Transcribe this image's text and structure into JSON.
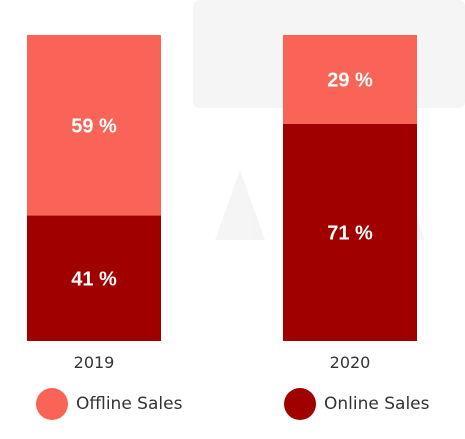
{
  "chart_data": {
    "type": "bar",
    "stacked": true,
    "percent_stacked": true,
    "categories": [
      "2019",
      "2020"
    ],
    "series": [
      {
        "name": "Online Sales",
        "values": [
          41,
          71
        ],
        "labels": [
          "41 %",
          "71 %"
        ],
        "color": "#a00000"
      },
      {
        "name": "Offline Sales",
        "values": [
          59,
          29
        ],
        "labels": [
          "59 %",
          "29 %"
        ],
        "color": "#f96456"
      }
    ],
    "ylim": [
      0,
      100
    ],
    "grid": false,
    "legend_position": "bottom"
  },
  "legend": {
    "items": [
      {
        "label": "Offline Sales",
        "color": "#f96456"
      },
      {
        "label": "Online Sales",
        "color": "#a00000"
      }
    ]
  }
}
